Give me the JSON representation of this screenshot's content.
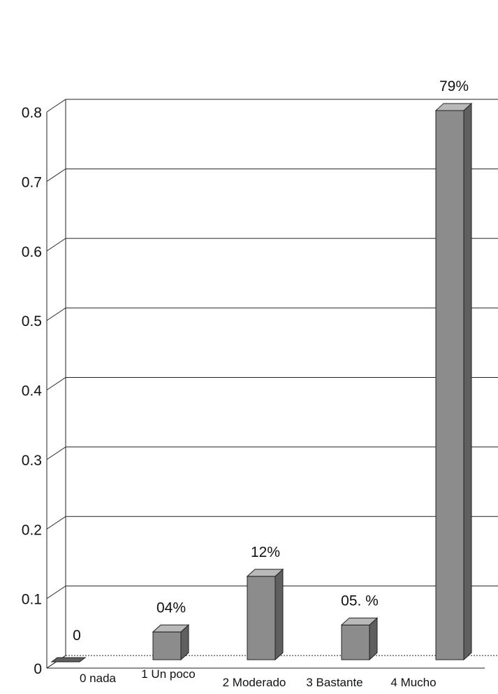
{
  "chart_data": {
    "type": "bar",
    "categories": [
      "0 nada",
      "1 Un poco",
      "2 Moderado",
      "3 Bastante",
      "4 Mucho"
    ],
    "values": [
      0.0,
      0.04,
      0.12,
      0.05,
      0.79
    ],
    "data_labels": [
      "0",
      "04%",
      "12%",
      "05. %",
      "79%"
    ],
    "y_ticks": [
      "0",
      "0.1",
      "0.2",
      "0.3",
      "0.4",
      "0.5",
      "0.6",
      "0.7",
      "0.8"
    ],
    "ylim": [
      0,
      0.8
    ],
    "grid": true,
    "title": "",
    "xlabel": "",
    "ylabel": "",
    "style": "3d-bar",
    "colors": {
      "bar_front": "#8c8c8c",
      "bar_side": "#5f5f5f",
      "bar_top": "#b9b9b9",
      "axis": "#222222"
    }
  }
}
